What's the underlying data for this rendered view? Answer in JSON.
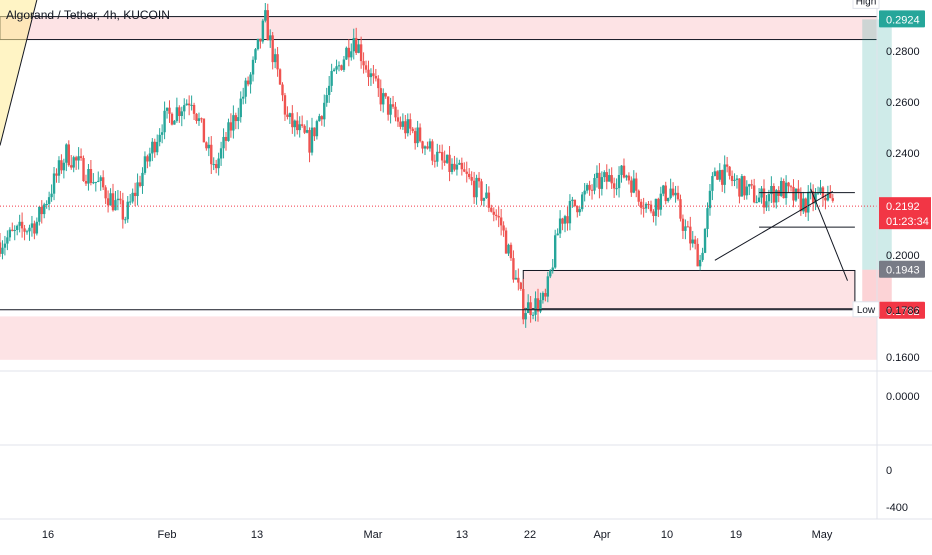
{
  "header": {
    "title": "Algorand / Tether, 4h, KUCOIN"
  },
  "price_axis": {
    "currency": "USDT",
    "ticks": [
      "0.2800",
      "0.2600",
      "0.2400",
      "0.2000",
      "0.1600"
    ],
    "high_label": "High",
    "low_label": "Low",
    "high_value": "0.2924",
    "low_value": "0.1786",
    "last_price": "0.2192",
    "countdown": "01:23:34",
    "target_value": "0.2924",
    "entry_value": "0.1943",
    "stop_value": "0.1782",
    "colors": {
      "target": "#26a69a",
      "last": "#f23645",
      "entry": "#787b86",
      "stop": "#f23645"
    }
  },
  "indicator_axis": {
    "ticks": [
      "0.0000",
      "0",
      "-400"
    ]
  },
  "time_axis": {
    "labels": [
      "16",
      "Feb",
      "13",
      "Mar",
      "13",
      "22",
      "Apr",
      "10",
      "19",
      "May"
    ]
  },
  "chart_data": {
    "type": "candlestick",
    "symbol": "Algorand / Tether",
    "interval": "4h",
    "exchange": "KUCOIN",
    "currency": "USDT",
    "ylim": [
      0.155,
      0.3
    ],
    "x_range": [
      "2021-01-08",
      "2021-05-07"
    ],
    "grid": false,
    "colors": {
      "up": "#26a69a",
      "down": "#ef5350"
    },
    "price_path": [
      [
        "2021-01-08",
        0.205
      ],
      [
        "2021-01-13",
        0.213
      ],
      [
        "2021-01-17",
        0.24
      ],
      [
        "2021-01-22",
        0.226
      ],
      [
        "2021-01-25",
        0.215
      ],
      [
        "2021-01-30",
        0.252
      ],
      [
        "2021-02-03",
        0.262
      ],
      [
        "2021-02-06",
        0.233
      ],
      [
        "2021-02-11",
        0.27
      ],
      [
        "2021-02-13",
        0.292
      ],
      [
        "2021-02-16",
        0.253
      ],
      [
        "2021-02-19",
        0.244
      ],
      [
        "2021-02-22",
        0.268
      ],
      [
        "2021-02-25",
        0.286
      ],
      [
        "2021-02-28",
        0.265
      ],
      [
        "2021-03-03",
        0.252
      ],
      [
        "2021-03-06",
        0.246
      ],
      [
        "2021-03-09",
        0.236
      ],
      [
        "2021-03-12",
        0.231
      ],
      [
        "2021-03-15",
        0.222
      ],
      [
        "2021-03-17",
        0.212
      ],
      [
        "2021-03-20",
        0.179
      ],
      [
        "2021-03-23",
        0.182
      ],
      [
        "2021-03-25",
        0.214
      ],
      [
        "2021-03-30",
        0.228
      ],
      [
        "2021-04-03",
        0.232
      ],
      [
        "2021-04-06",
        0.218
      ],
      [
        "2021-04-09",
        0.226
      ],
      [
        "2021-04-11",
        0.21
      ],
      [
        "2021-04-13",
        0.198
      ],
      [
        "2021-04-15",
        0.234
      ],
      [
        "2021-04-18",
        0.228
      ],
      [
        "2021-04-21",
        0.222
      ],
      [
        "2021-04-24",
        0.226
      ],
      [
        "2021-04-27",
        0.22
      ],
      [
        "2021-04-30",
        0.224
      ],
      [
        "2021-05-01",
        0.2192
      ]
    ],
    "zones": [
      {
        "type": "resistance",
        "from": "2021-01-08",
        "to": "2021-05-07",
        "low": 0.2845,
        "high": 0.2935
      },
      {
        "type": "demand",
        "from": "2021-03-20",
        "to": "2021-05-04",
        "low": 0.179,
        "high": 0.194
      },
      {
        "type": "support",
        "from": "2021-01-08",
        "to": "2021-05-07",
        "low": 0.159,
        "high": 0.176
      }
    ],
    "lines": [
      {
        "name": "range-top",
        "from": [
          "2021-04-21",
          0.2245
        ],
        "to": [
          "2021-05-04",
          0.2245
        ]
      },
      {
        "name": "range-bottom",
        "from": [
          "2021-04-21",
          0.211
        ],
        "to": [
          "2021-05-04",
          0.211
        ]
      },
      {
        "name": "rising-trendline",
        "from": [
          "2021-04-15",
          0.198
        ],
        "to": [
          "2021-05-01",
          0.225
        ]
      },
      {
        "name": "projection",
        "from": [
          "2021-04-28",
          0.226
        ],
        "to": [
          "2021-05-03",
          0.19
        ]
      },
      {
        "name": "early-uptrend-line",
        "from": [
          "2021-01-08",
          0.243
        ],
        "to": [
          "2021-01-13",
          0.3
        ]
      },
      {
        "name": "low-line",
        "value": 0.1786
      }
    ],
    "long_position": {
      "from": "2021-05-05",
      "to": "2021-05-09",
      "entry": 0.1943,
      "target": 0.2924,
      "stop": 0.1782
    },
    "last_price": 0.2192,
    "high": 0.2924,
    "low": 0.1786
  }
}
